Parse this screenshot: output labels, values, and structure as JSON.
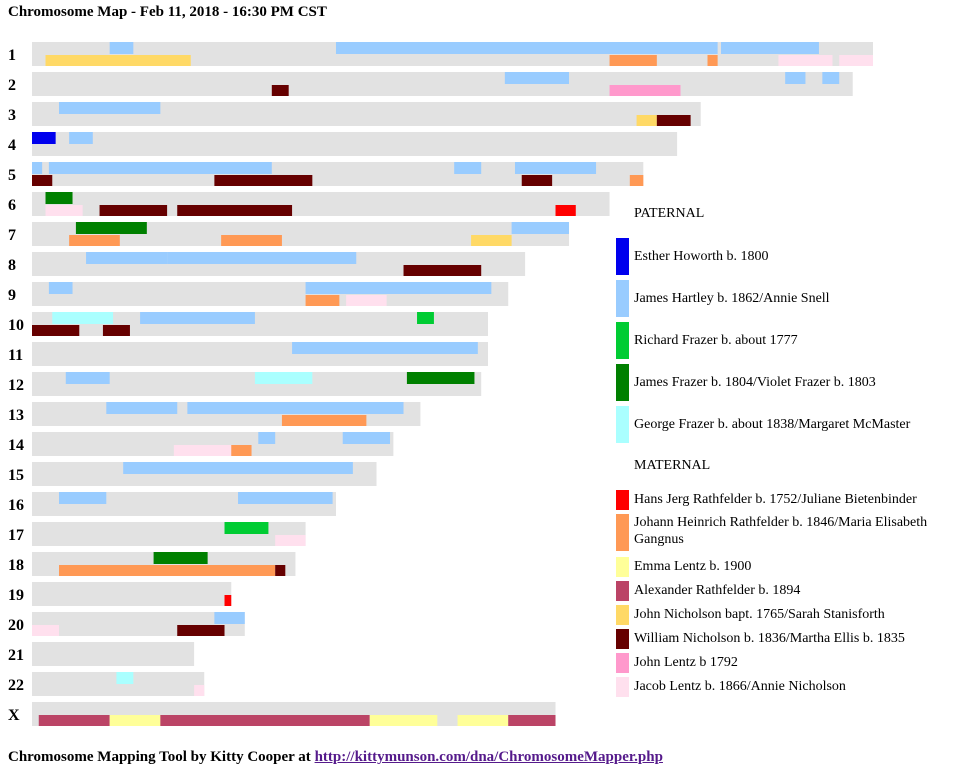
{
  "title": "Chromosome Map - Feb 11, 2018 - 16:30 PM CST",
  "footer": {
    "prefix": "Chromosome Mapping Tool by Kitty Cooper at ",
    "link_text": "http://kittymunson.com/dna/ChromosomeMapper.php"
  },
  "legend": {
    "paternal_heading": "PATERNAL",
    "maternal_heading": "MATERNAL",
    "paternal": [
      {
        "key": "esther",
        "label": "Esther Howorth b. 1800",
        "color": "#0000ee"
      },
      {
        "key": "hartley",
        "label": "James Hartley b. 1862/Annie Snell",
        "color": "#99ccff"
      },
      {
        "key": "richard",
        "label": "Richard Frazer b. about 1777",
        "color": "#00cc33"
      },
      {
        "key": "jamesfrazer",
        "label": "James Frazer b. 1804/Violet Frazer b. 1803",
        "color": "#008000"
      },
      {
        "key": "george",
        "label": "George Frazer b. about 1838/Margaret McMaster",
        "color": "#aaffff"
      }
    ],
    "maternal": [
      {
        "key": "hans",
        "label": "Hans Jerg Rathfelder b. 1752/Juliane Bietenbinder",
        "color": "#ff0000"
      },
      {
        "key": "johann",
        "label": "Johann Heinrich Rathfelder b. 1846/Maria Elisabeth Gangnus",
        "color": "#ff9955"
      },
      {
        "key": "emma",
        "label": "Emma Lentz b. 1900",
        "color": "#ffff99"
      },
      {
        "key": "alexander",
        "label": "Alexander Rathfelder b. 1894",
        "color": "#bb4466"
      },
      {
        "key": "nicholson",
        "label": "John Nicholson bapt. 1765/Sarah Stanisforth",
        "color": "#ffd966"
      },
      {
        "key": "william",
        "label": "William Nicholson b. 1836/Martha Ellis b. 1835",
        "color": "#660000"
      },
      {
        "key": "johnlentz",
        "label": "John Lentz b 1792",
        "color": "#ff99cc"
      },
      {
        "key": "jacob",
        "label": "Jacob Lentz b. 1866/Annie Nicholson",
        "color": "#ffe0ee"
      }
    ]
  },
  "chart_data": {
    "type": "chromosome-map",
    "units": "Mb",
    "bar_color": "#e2e2e2",
    "chromosomes": [
      {
        "name": "1",
        "length": 249,
        "segments": [
          {
            "start": 23,
            "end": 30,
            "lane": 0,
            "key": "hartley"
          },
          {
            "start": 90,
            "end": 203,
            "lane": 0,
            "key": "hartley"
          },
          {
            "start": 204,
            "end": 233,
            "lane": 0,
            "key": "hartley"
          },
          {
            "start": 4,
            "end": 47,
            "lane": 1,
            "key": "nicholson"
          },
          {
            "start": 171,
            "end": 185,
            "lane": 1,
            "key": "johann"
          },
          {
            "start": 200,
            "end": 203,
            "lane": 1,
            "key": "johann"
          },
          {
            "start": 221,
            "end": 237,
            "lane": 1,
            "key": "jacob"
          },
          {
            "start": 239,
            "end": 249,
            "lane": 1,
            "key": "jacob"
          }
        ]
      },
      {
        "name": "2",
        "length": 243,
        "segments": [
          {
            "start": 140,
            "end": 159,
            "lane": 0,
            "key": "hartley"
          },
          {
            "start": 223,
            "end": 229,
            "lane": 0,
            "key": "hartley"
          },
          {
            "start": 234,
            "end": 239,
            "lane": 0,
            "key": "hartley"
          },
          {
            "start": 71,
            "end": 76,
            "lane": 1,
            "key": "william"
          },
          {
            "start": 171,
            "end": 192,
            "lane": 1,
            "key": "johnlentz"
          }
        ]
      },
      {
        "name": "3",
        "length": 198,
        "segments": [
          {
            "start": 8,
            "end": 38,
            "lane": 0,
            "key": "hartley"
          },
          {
            "start": 179,
            "end": 185,
            "lane": 1,
            "key": "nicholson"
          },
          {
            "start": 185,
            "end": 195,
            "lane": 1,
            "key": "william"
          }
        ]
      },
      {
        "name": "4",
        "length": 191,
        "segments": [
          {
            "start": 0,
            "end": 7,
            "lane": 0,
            "key": "esther"
          },
          {
            "start": 11,
            "end": 18,
            "lane": 0,
            "key": "hartley"
          }
        ]
      },
      {
        "name": "5",
        "length": 181,
        "segments": [
          {
            "start": 0,
            "end": 3,
            "lane": 0,
            "key": "hartley"
          },
          {
            "start": 5,
            "end": 71,
            "lane": 0,
            "key": "hartley"
          },
          {
            "start": 125,
            "end": 133,
            "lane": 0,
            "key": "hartley"
          },
          {
            "start": 143,
            "end": 167,
            "lane": 0,
            "key": "hartley"
          },
          {
            "start": 0,
            "end": 6,
            "lane": 1,
            "key": "william"
          },
          {
            "start": 54,
            "end": 83,
            "lane": 1,
            "key": "william"
          },
          {
            "start": 145,
            "end": 154,
            "lane": 1,
            "key": "william"
          },
          {
            "start": 177,
            "end": 181,
            "lane": 1,
            "key": "johann"
          }
        ]
      },
      {
        "name": "6",
        "length": 171,
        "segments": [
          {
            "start": 4,
            "end": 12,
            "lane": 0,
            "key": "jamesfrazer"
          },
          {
            "start": 4,
            "end": 15,
            "lane": 1,
            "key": "jacob"
          },
          {
            "start": 20,
            "end": 40,
            "lane": 1,
            "key": "william"
          },
          {
            "start": 43,
            "end": 77,
            "lane": 1,
            "key": "william"
          },
          {
            "start": 155,
            "end": 161,
            "lane": 1,
            "key": "hans"
          }
        ]
      },
      {
        "name": "7",
        "length": 159,
        "segments": [
          {
            "start": 13,
            "end": 34,
            "lane": 0,
            "key": "jamesfrazer"
          },
          {
            "start": 142,
            "end": 159,
            "lane": 0,
            "key": "hartley"
          },
          {
            "start": 11,
            "end": 26,
            "lane": 1,
            "key": "johann"
          },
          {
            "start": 56,
            "end": 74,
            "lane": 1,
            "key": "johann"
          },
          {
            "start": 130,
            "end": 142,
            "lane": 1,
            "key": "nicholson"
          }
        ]
      },
      {
        "name": "8",
        "length": 146,
        "segments": [
          {
            "start": 16,
            "end": 40,
            "lane": 0,
            "key": "hartley"
          },
          {
            "start": 40,
            "end": 96,
            "lane": 0,
            "key": "hartley"
          },
          {
            "start": 110,
            "end": 133,
            "lane": 1,
            "key": "william"
          }
        ]
      },
      {
        "name": "9",
        "length": 141,
        "segments": [
          {
            "start": 5,
            "end": 12,
            "lane": 0,
            "key": "hartley"
          },
          {
            "start": 81,
            "end": 136,
            "lane": 0,
            "key": "hartley"
          },
          {
            "start": 81,
            "end": 91,
            "lane": 1,
            "key": "johann"
          },
          {
            "start": 93,
            "end": 105,
            "lane": 1,
            "key": "jacob"
          }
        ]
      },
      {
        "name": "10",
        "length": 135,
        "segments": [
          {
            "start": 6,
            "end": 24,
            "lane": 0,
            "key": "george"
          },
          {
            "start": 32,
            "end": 66,
            "lane": 0,
            "key": "hartley"
          },
          {
            "start": 114,
            "end": 119,
            "lane": 0,
            "key": "richard"
          },
          {
            "start": 0,
            "end": 14,
            "lane": 1,
            "key": "william"
          },
          {
            "start": 21,
            "end": 29,
            "lane": 1,
            "key": "william"
          }
        ]
      },
      {
        "name": "11",
        "length": 135,
        "segments": [
          {
            "start": 77,
            "end": 132,
            "lane": 0,
            "key": "hartley"
          }
        ]
      },
      {
        "name": "12",
        "length": 133,
        "segments": [
          {
            "start": 10,
            "end": 23,
            "lane": 0,
            "key": "hartley"
          },
          {
            "start": 66,
            "end": 83,
            "lane": 0,
            "key": "george"
          },
          {
            "start": 111,
            "end": 131,
            "lane": 0,
            "key": "jamesfrazer"
          }
        ]
      },
      {
        "name": "13",
        "length": 115,
        "segments": [
          {
            "start": 22,
            "end": 43,
            "lane": 0,
            "key": "hartley"
          },
          {
            "start": 46,
            "end": 110,
            "lane": 0,
            "key": "hartley"
          },
          {
            "start": 74,
            "end": 99,
            "lane": 1,
            "key": "johann"
          }
        ]
      },
      {
        "name": "14",
        "length": 107,
        "segments": [
          {
            "start": 67,
            "end": 72,
            "lane": 0,
            "key": "hartley"
          },
          {
            "start": 92,
            "end": 106,
            "lane": 0,
            "key": "hartley"
          },
          {
            "start": 42,
            "end": 59,
            "lane": 1,
            "key": "jacob"
          },
          {
            "start": 59,
            "end": 65,
            "lane": 1,
            "key": "johann"
          }
        ]
      },
      {
        "name": "15",
        "length": 102,
        "segments": [
          {
            "start": 27,
            "end": 95,
            "lane": 0,
            "key": "hartley"
          }
        ]
      },
      {
        "name": "16",
        "length": 90,
        "segments": [
          {
            "start": 8,
            "end": 22,
            "lane": 0,
            "key": "hartley"
          },
          {
            "start": 61,
            "end": 89,
            "lane": 0,
            "key": "hartley"
          }
        ]
      },
      {
        "name": "17",
        "length": 81,
        "segments": [
          {
            "start": 57,
            "end": 70,
            "lane": 0,
            "key": "richard"
          },
          {
            "start": 72,
            "end": 81,
            "lane": 1,
            "key": "jacob"
          }
        ]
      },
      {
        "name": "18",
        "length": 78,
        "segments": [
          {
            "start": 36,
            "end": 52,
            "lane": 0,
            "key": "jamesfrazer"
          },
          {
            "start": 8,
            "end": 72,
            "lane": 1,
            "key": "johann"
          },
          {
            "start": 72,
            "end": 75,
            "lane": 1,
            "key": "william"
          }
        ]
      },
      {
        "name": "19",
        "length": 59,
        "segments": [
          {
            "start": 57,
            "end": 59,
            "lane": 1,
            "key": "hans"
          }
        ]
      },
      {
        "name": "20",
        "length": 63,
        "segments": [
          {
            "start": 54,
            "end": 63,
            "lane": 0,
            "key": "hartley"
          },
          {
            "start": 0,
            "end": 8,
            "lane": 1,
            "key": "jacob"
          },
          {
            "start": 43,
            "end": 57,
            "lane": 1,
            "key": "william"
          }
        ]
      },
      {
        "name": "21",
        "length": 48,
        "segments": []
      },
      {
        "name": "22",
        "length": 51,
        "segments": [
          {
            "start": 25,
            "end": 30,
            "lane": 0,
            "key": "george"
          },
          {
            "start": 48,
            "end": 51,
            "lane": 1,
            "key": "jacob"
          }
        ]
      },
      {
        "name": "X",
        "length": 155,
        "segments": [
          {
            "start": 2,
            "end": 23,
            "lane": 1,
            "key": "alexander"
          },
          {
            "start": 23,
            "end": 38,
            "lane": 1,
            "key": "emma"
          },
          {
            "start": 38,
            "end": 100,
            "lane": 1,
            "key": "alexander"
          },
          {
            "start": 100,
            "end": 120,
            "lane": 1,
            "key": "emma"
          },
          {
            "start": 126,
            "end": 141,
            "lane": 1,
            "key": "emma"
          },
          {
            "start": 141,
            "end": 155,
            "lane": 1,
            "key": "alexander"
          }
        ]
      }
    ]
  }
}
